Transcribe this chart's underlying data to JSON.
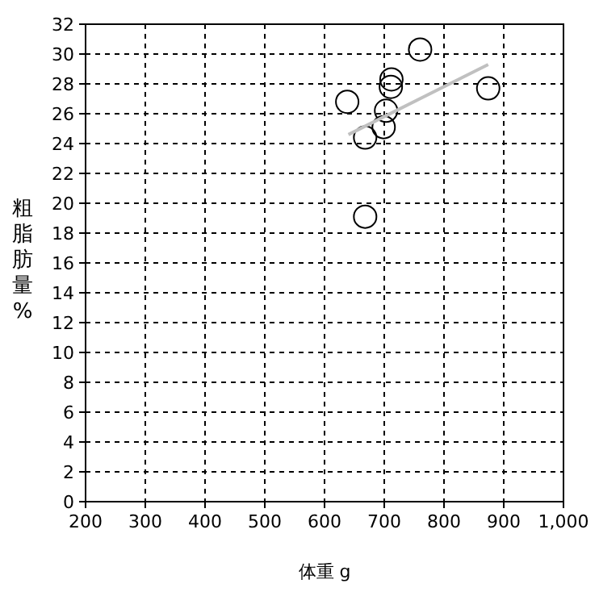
{
  "chart_data": {
    "type": "scatter",
    "xlabel": "体重 g",
    "ylabel": "粗脂肪量%",
    "series": [
      {
        "color": "#000000",
        "marker": "circle",
        "x": [
          760,
          712,
          711,
          638,
          874,
          703,
          699,
          668,
          668
        ],
        "values": [
          30.3,
          28.3,
          27.8,
          26.8,
          27.7,
          26.2,
          25.1,
          24.4,
          19.1
        ]
      },
      {
        "type": "line",
        "color": "#c0c0c0",
        "x": [
          640,
          874
        ],
        "values": [
          24.6,
          29.3
        ]
      }
    ],
    "xlim": [
      200,
      1000
    ],
    "ylim": [
      0,
      32
    ],
    "xticks": [
      200,
      300,
      400,
      500,
      600,
      700,
      800,
      900,
      {
        "value": 1000,
        "label": "1,000"
      }
    ],
    "yticks": [
      0,
      2,
      4,
      6,
      8,
      10,
      12,
      14,
      16,
      18,
      20,
      22,
      24,
      26,
      28,
      30,
      32
    ],
    "grid": true
  }
}
